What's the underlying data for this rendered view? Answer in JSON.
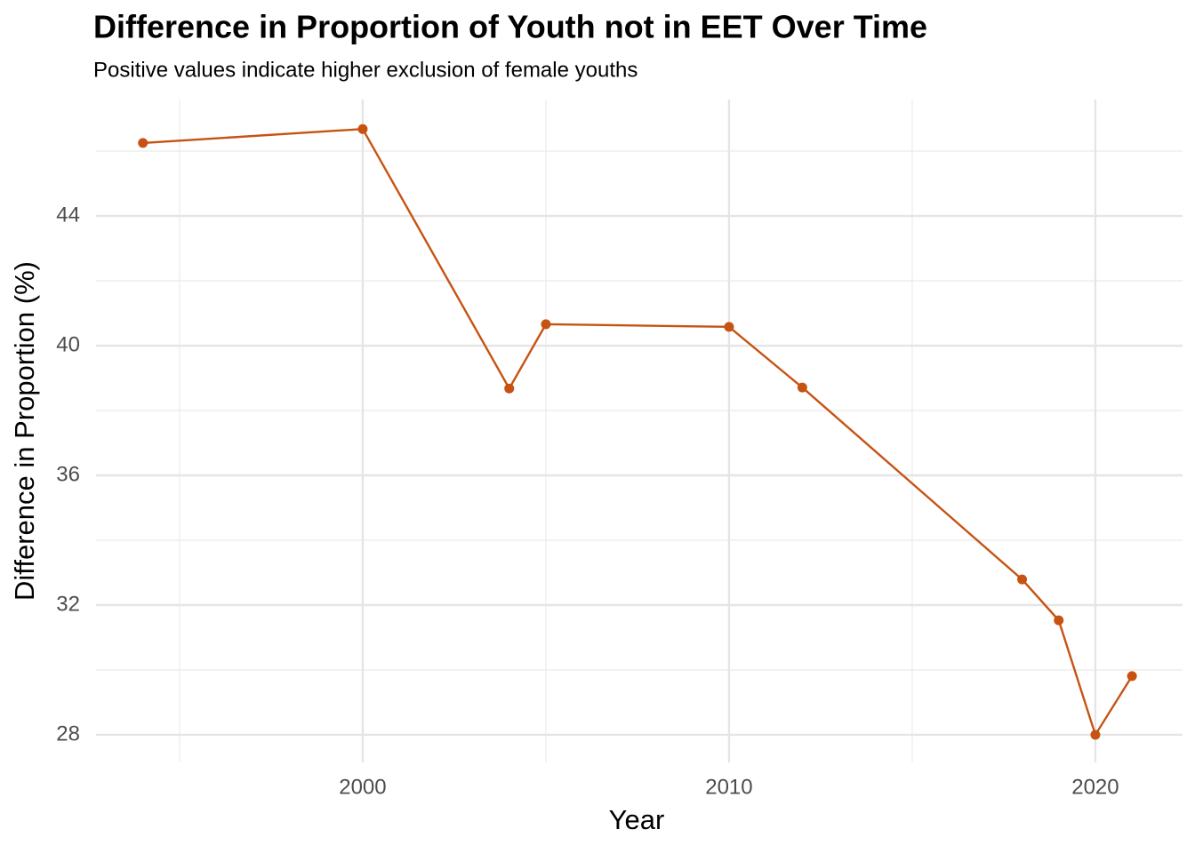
{
  "chart_data": {
    "type": "line",
    "title": "Difference in Proportion of Youth not in EET Over Time",
    "subtitle": "Positive values indicate higher exclusion of female youths",
    "x_label": "Year",
    "y_label": "Difference in Proportion (%)",
    "x": [
      1994,
      2000,
      2004,
      2005,
      2010,
      2012,
      2018,
      2019,
      2020,
      2021
    ],
    "series": [
      {
        "color": "#c65312",
        "values": [
          46.25,
          46.68,
          38.68,
          40.66,
          40.58,
          38.71,
          32.79,
          31.53,
          28.0,
          29.81
        ]
      }
    ],
    "xlim": [
      1992.72,
      2022.38
    ],
    "xticks": [
      2000,
      2010,
      2020
    ],
    "x_minor_ticks": [
      1995,
      2005,
      2015
    ],
    "ylim": [
      27.15,
      47.59
    ],
    "yticks": [
      28,
      32,
      36,
      40,
      44
    ],
    "y_minor_ticks": [
      30,
      34,
      38,
      42,
      46
    ],
    "grid": true
  }
}
